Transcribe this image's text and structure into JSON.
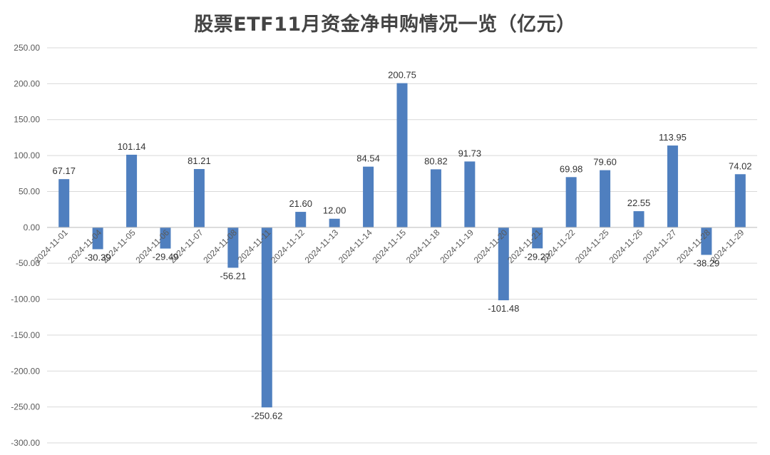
{
  "chart_data": {
    "type": "bar",
    "title": "股票ETF11月资金净申购情况一览（亿元）",
    "xlabel": "",
    "ylabel": "",
    "ylim": [
      -300,
      250
    ],
    "yticks": [
      250,
      200,
      150,
      100,
      50,
      0,
      -50,
      -100,
      -150,
      -200,
      -250,
      -300
    ],
    "ytick_labels": [
      "250.00",
      "200.00",
      "150.00",
      "100.00",
      "50.00",
      "0.00",
      "-50.00",
      "-100.00",
      "-150.00",
      "-200.00",
      "-250.00",
      "-300.00"
    ],
    "grid": true,
    "legend": "none",
    "bar_color": "#4f7fbf",
    "categories": [
      "2024-11-01",
      "2024-11-04",
      "2024-11-05",
      "2024-11-06",
      "2024-11-07",
      "2024-11-08",
      "2024-11-11",
      "2024-11-12",
      "2024-11-13",
      "2024-11-14",
      "2024-11-15",
      "2024-11-18",
      "2024-11-19",
      "2024-11-20",
      "2024-11-21",
      "2024-11-22",
      "2024-11-25",
      "2024-11-26",
      "2024-11-27",
      "2024-11-28",
      "2024-11-29"
    ],
    "values": [
      67.17,
      -30.39,
      101.14,
      -29.49,
      81.21,
      -56.21,
      -250.62,
      21.6,
      12.0,
      84.54,
      200.75,
      80.82,
      91.73,
      -101.48,
      -29.27,
      69.98,
      79.6,
      22.55,
      113.95,
      -38.29,
      74.02
    ],
    "value_labels": [
      "67.17",
      "-30.39",
      "101.14",
      "-29.49",
      "81.21",
      "-56.21",
      "-250.62",
      "21.60",
      "12.00",
      "84.54",
      "200.75",
      "80.82",
      "91.73",
      "-101.48",
      "-29.27",
      "69.98",
      "79.60",
      "22.55",
      "113.95",
      "-38.29",
      "74.02"
    ]
  }
}
